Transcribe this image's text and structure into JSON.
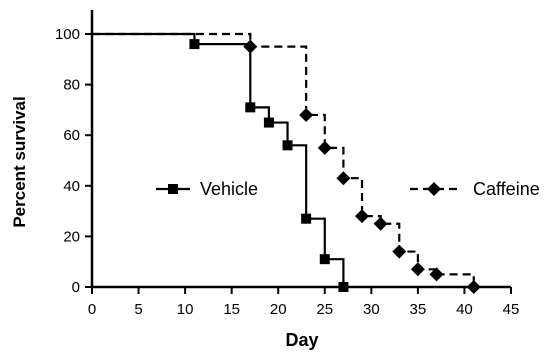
{
  "chart_data": {
    "type": "line",
    "subtype": "kaplan-meier-step",
    "title": "",
    "xlabel": "Day",
    "ylabel": "Percent survival",
    "xlim": [
      0,
      45
    ],
    "ylim": [
      0,
      100
    ],
    "xticks": [
      0,
      5,
      10,
      15,
      20,
      25,
      30,
      35,
      40,
      45
    ],
    "yticks": [
      0,
      20,
      40,
      60,
      80,
      100
    ],
    "grid": false,
    "legend": "inline",
    "series": [
      {
        "name": "Vehicle",
        "line_style": "solid",
        "marker": "square",
        "color": "#000000",
        "steps": [
          [
            0,
            100
          ],
          [
            11,
            96
          ],
          [
            17,
            71
          ],
          [
            19,
            65
          ],
          [
            21,
            56
          ],
          [
            23,
            27
          ],
          [
            25,
            11
          ],
          [
            27,
            0
          ]
        ],
        "markers": [
          [
            11,
            96
          ],
          [
            17,
            71
          ],
          [
            19,
            65
          ],
          [
            21,
            56
          ],
          [
            23,
            27
          ],
          [
            25,
            11
          ],
          [
            27,
            0
          ]
        ]
      },
      {
        "name": "Caffeine",
        "line_style": "dashed",
        "marker": "diamond",
        "color": "#000000",
        "steps": [
          [
            0,
            100
          ],
          [
            17,
            95
          ],
          [
            23,
            68
          ],
          [
            25,
            55
          ],
          [
            27,
            43
          ],
          [
            29,
            28
          ],
          [
            31,
            25
          ],
          [
            33,
            14
          ],
          [
            35,
            7
          ],
          [
            37,
            5
          ],
          [
            41,
            0
          ]
        ],
        "markers": [
          [
            17,
            95
          ],
          [
            23,
            68
          ],
          [
            25,
            55
          ],
          [
            27,
            43
          ],
          [
            29,
            28
          ],
          [
            31,
            25
          ],
          [
            33,
            14
          ],
          [
            35,
            7
          ],
          [
            37,
            5
          ],
          [
            41,
            0
          ]
        ]
      }
    ]
  }
}
